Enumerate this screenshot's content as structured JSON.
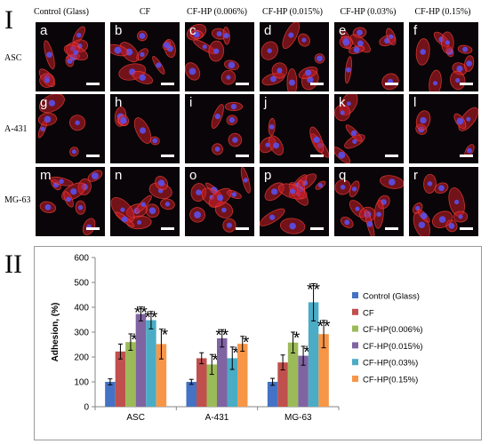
{
  "figure": {
    "panel_one_label": "I",
    "panel_two_label": "II",
    "column_headers": [
      "Control (Glass)",
      "CF",
      "CF-HP (0.006%)",
      "CF-HP (0.015%)",
      "CF-HP (0.03%)",
      "CF-HP (0.15%)"
    ],
    "row_labels": [
      "ASC",
      "A-431",
      "MG-63"
    ],
    "tile_letters": [
      "a",
      "b",
      "c",
      "d",
      "e",
      "f",
      "g",
      "h",
      "i",
      "j",
      "k",
      "l",
      "m",
      "n",
      "o",
      "p",
      "q",
      "r"
    ]
  },
  "chart_data": {
    "type": "bar",
    "categories": [
      "ASC",
      "A-431",
      "MG-63"
    ],
    "ylabel": "Adhesion, (%)",
    "ylim": [
      0,
      600
    ],
    "yticks": [
      "0",
      "100",
      "200",
      "300",
      "400",
      "500",
      "600"
    ],
    "grid": false,
    "legend_position": "right",
    "significance_marker": "*",
    "series": [
      {
        "name": "Control (Glass)",
        "color": "#4472c4",
        "values": [
          100,
          100,
          100
        ],
        "errors": [
          12,
          10,
          14
        ],
        "marks": [
          "",
          "",
          ""
        ]
      },
      {
        "name": "CF",
        "color": "#c0504d",
        "values": [
          222,
          195,
          178
        ],
        "errors": [
          30,
          22,
          30
        ],
        "marks": [
          "",
          "",
          ""
        ]
      },
      {
        "name": "CF-HP(0.006%)",
        "color": "#9bbb59",
        "values": [
          260,
          170,
          258
        ],
        "errors": [
          33,
          40,
          42
        ],
        "marks": [
          "*",
          "*",
          "*"
        ]
      },
      {
        "name": "CF-HP(0.015%)",
        "color": "#8064a2",
        "values": [
          373,
          275,
          205
        ],
        "errors": [
          28,
          35,
          38
        ],
        "marks": [
          "**",
          "**",
          "*"
        ]
      },
      {
        "name": "CF-HP(0.03%)",
        "color": "#4bacc6",
        "values": [
          348,
          195,
          420
        ],
        "errors": [
          35,
          45,
          75
        ],
        "marks": [
          "**",
          "*",
          "**"
        ]
      },
      {
        "name": "CF-HP(0.15%)",
        "color": "#f79646",
        "values": [
          252,
          253,
          292
        ],
        "errors": [
          60,
          30,
          55
        ],
        "marks": [
          "*",
          "*",
          "**"
        ]
      }
    ]
  }
}
